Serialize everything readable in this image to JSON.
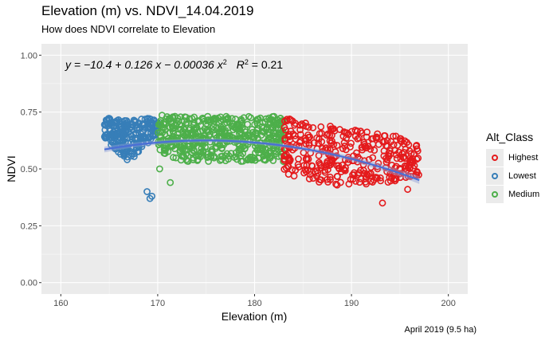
{
  "title": "Elevation (m) vs. NDVI_14.04.2019",
  "subtitle": "How does NDVI correlate to Elevation",
  "caption": "April 2019 (9.5 ha)",
  "chart_data": {
    "type": "scatter",
    "xlabel": "Elevation (m)",
    "ylabel": "NDVI",
    "xlim": [
      158,
      202
    ],
    "ylim": [
      -0.05,
      1.05
    ],
    "x_ticks": [
      160,
      170,
      180,
      190,
      200
    ],
    "y_ticks": [
      0.0,
      0.25,
      0.5,
      0.75,
      1.0
    ],
    "y_tick_labels": [
      "0.00",
      "0.25",
      "0.50",
      "0.75",
      "1.00"
    ],
    "grid": true,
    "equation": {
      "prefix": "y = −10.4 + 0.126 x − 0.00036 x",
      "exponent": "2",
      "r_label": "R",
      "r_exponent": "2",
      "r_value": " = 0.21"
    },
    "legend": {
      "title": "Alt_Class",
      "position": "right",
      "entries": [
        {
          "name": "Highest",
          "color": "#e41a1c"
        },
        {
          "name": "Lowest",
          "color": "#377eb8"
        },
        {
          "name": "Medium",
          "color": "#4daf4a"
        }
      ]
    },
    "fit": {
      "x_range": [
        164.5,
        197
      ],
      "coefficients": [
        -10.4,
        0.126,
        -0.00036
      ],
      "color": "#4a6fd6"
    },
    "series": [
      {
        "name": "Lowest",
        "color": "#377eb8",
        "x_range": [
          164.5,
          170
        ],
        "y_range": [
          0.48,
          0.74
        ],
        "outliers": [
          [
            168.9,
            0.4
          ],
          [
            169.4,
            0.38
          ],
          [
            169.2,
            0.37
          ]
        ]
      },
      {
        "name": "Medium",
        "color": "#4daf4a",
        "x_range": [
          170,
          183
        ],
        "y_range": [
          0.45,
          0.76
        ],
        "outliers": [
          [
            171.3,
            0.44
          ],
          [
            170.2,
            0.5
          ]
        ]
      },
      {
        "name": "Highest",
        "color": "#e41a1c",
        "x_range": [
          183,
          197
        ],
        "y_range": [
          0.35,
          0.76
        ],
        "outliers": [
          [
            195.8,
            0.41
          ],
          [
            193.2,
            0.35
          ]
        ]
      }
    ]
  }
}
